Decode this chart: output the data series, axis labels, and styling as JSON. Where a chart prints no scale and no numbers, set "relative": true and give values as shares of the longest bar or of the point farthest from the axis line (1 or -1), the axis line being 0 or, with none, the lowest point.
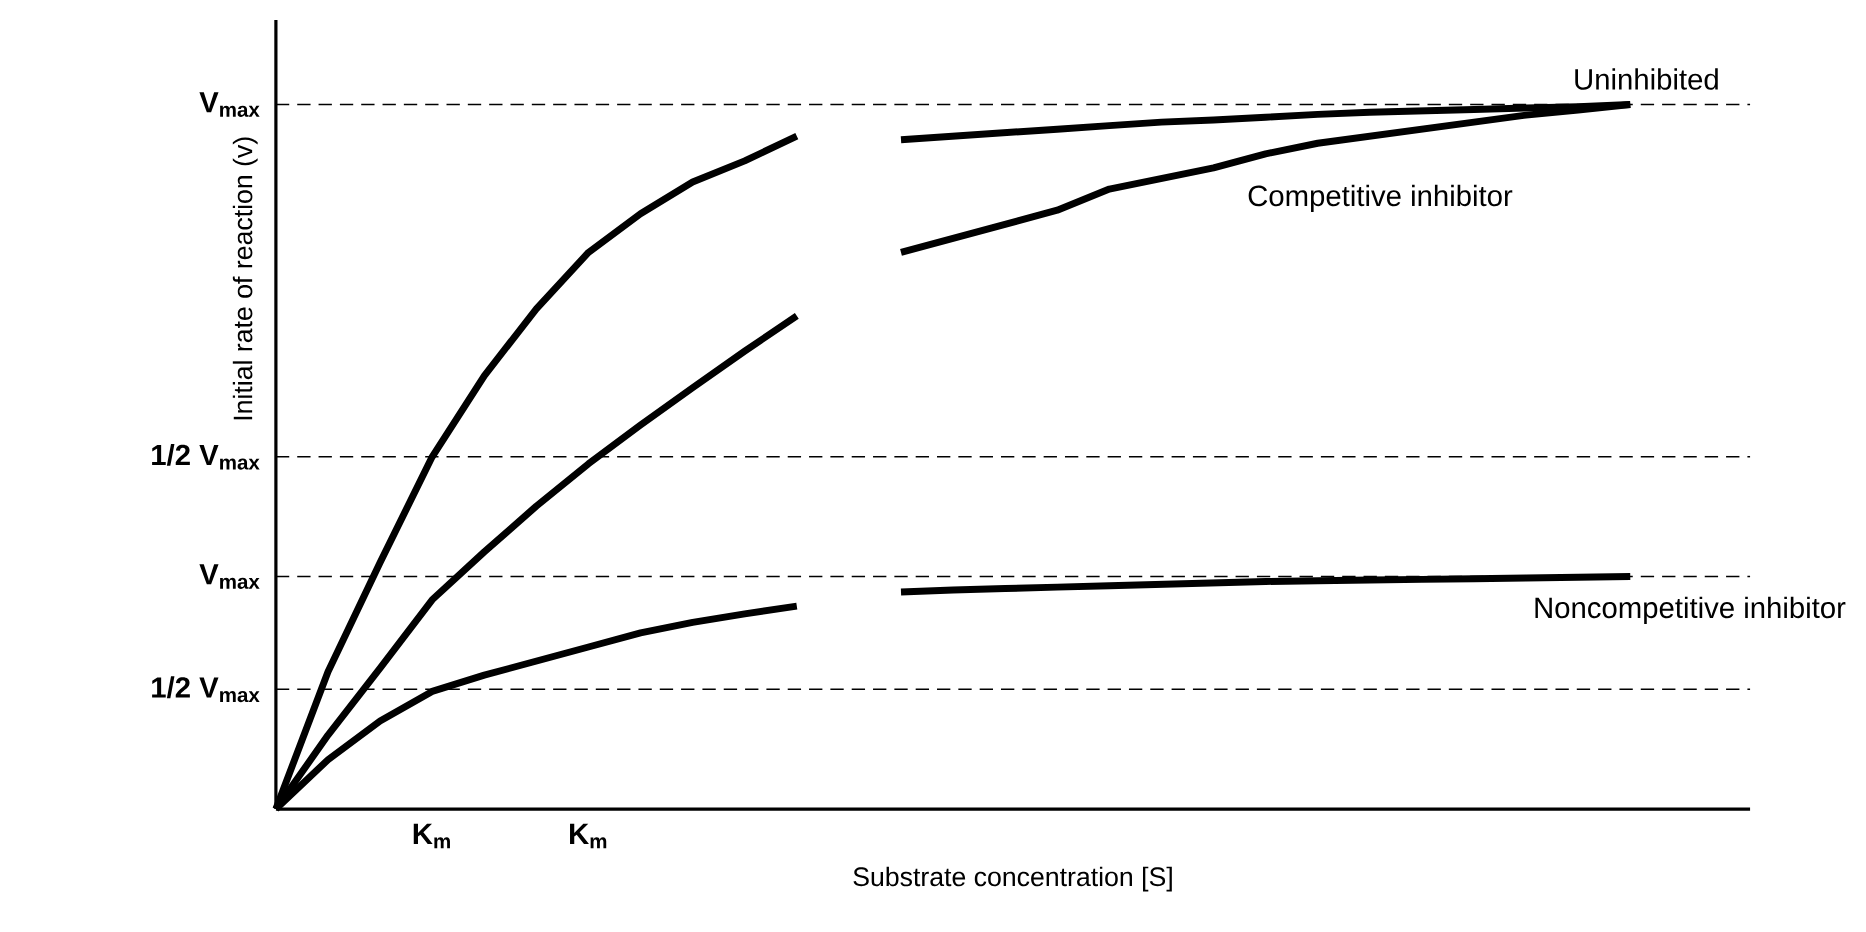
{
  "chart_data": {
    "type": "line",
    "xlabel": "Substrate concentration [S]",
    "ylabel": "Initial rate of reaction (v)",
    "relative": true,
    "grid": false,
    "line_style": "solid",
    "marker": "none",
    "categories": [
      null,
      null,
      null,
      "K$_{m}$",
      null,
      null,
      "K$_{m}$",
      null,
      null,
      null,
      null,
      null,
      null,
      null,
      null,
      null,
      null,
      null,
      null,
      null,
      null,
      null,
      null,
      null,
      null,
      null,
      null,
      null,
      null
    ],
    "series": [
      {
        "name": "Uninhibited",
        "color": "#000000",
        "values": [
          0,
          0.195,
          0.35,
          0.5,
          0.615,
          0.71,
          0.79,
          0.845,
          0.89,
          0.92,
          0.955,
          null,
          0.95,
          0.955,
          0.96,
          0.965,
          0.97,
          0.975,
          0.978,
          0.982,
          0.986,
          0.989,
          0.991,
          0.993,
          0.995,
          0.997,
          1.0,
          null,
          null
        ]
      },
      {
        "name": "Competitive inhibitor",
        "color": "#000000",
        "values": [
          0,
          0.105,
          0.2,
          0.297,
          0.365,
          0.43,
          0.49,
          0.545,
          0.598,
          0.65,
          0.7,
          null,
          0.79,
          0.81,
          0.83,
          0.85,
          0.88,
          0.895,
          0.91,
          0.93,
          0.945,
          0.955,
          0.965,
          0.975,
          0.985,
          0.992,
          1.0,
          null,
          null
        ]
      },
      {
        "name": "Noncompetitive inhibitor",
        "color": "#000000",
        "values": [
          0,
          0.07,
          0.125,
          0.167,
          0.19,
          0.21,
          0.23,
          0.25,
          0.265,
          0.277,
          0.288,
          null,
          0.308,
          0.311,
          0.313,
          0.315,
          0.317,
          0.319,
          0.321,
          0.323,
          0.324,
          0.325,
          0.326,
          0.327,
          0.328,
          0.329,
          0.33,
          null,
          null
        ]
      }
    ],
    "ref_lines": [
      {
        "axis": "y",
        "value": 1,
        "label": "V$_{max}$",
        "line_style": "dashed",
        "color": "#000000"
      },
      {
        "axis": "y",
        "value": 0.5,
        "label": "1/2 V$_{max}$",
        "line_style": "dashed",
        "color": "#000000"
      },
      {
        "axis": "y",
        "value": 0.33,
        "label": "V$_{max}$",
        "line_style": "dashed",
        "color": "#000000"
      },
      {
        "axis": "y",
        "value": 0.17,
        "label": "1/2 V$_{max}$",
        "line_style": "dashed",
        "color": "#000000"
      }
    ]
  }
}
